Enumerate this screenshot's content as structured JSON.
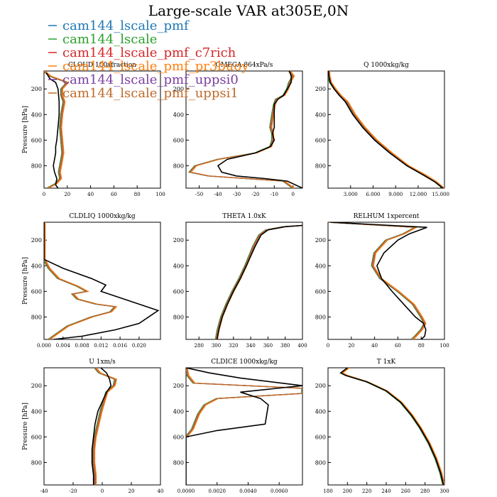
{
  "figure": {
    "title": "Large-scale VAR at305E,0N",
    "legend": [
      {
        "name": "cam144_lscale_pmf",
        "color": "#1f77b4"
      },
      {
        "name": "cam144_lscale",
        "color": "#2ca02c"
      },
      {
        "name": "cam144_lscale_pmf_c7rich",
        "color": "#d62728"
      },
      {
        "name": "cam144_lscale_pmf_pr3buoy",
        "color": "#ff7f0e"
      },
      {
        "name": "cam144_lscale_pmf_uppsi0",
        "color": "#7b3fa0"
      },
      {
        "name": "cam144_lscale_pmf_uppsi1",
        "color": "#c06a2b"
      }
    ],
    "obs_color": "#000000"
  },
  "chart_data": [
    {
      "type": "line",
      "title": "CLOUD 100xfraction",
      "ylabel": "Pressure [hPa]",
      "ylim": [
        975,
        60
      ],
      "yticks": [
        200,
        400,
        600,
        800
      ],
      "xlim": [
        0,
        100
      ],
      "xticks": [
        "0",
        "20",
        "40",
        "60",
        "80",
        "100"
      ],
      "xtick_values": [
        0,
        20,
        40,
        60,
        80,
        100
      ],
      "obs": {
        "x": [
          2,
          5,
          10,
          12,
          13,
          13,
          12,
          11,
          10,
          10,
          9,
          8,
          9,
          11,
          10,
          12
        ],
        "y": [
          75,
          120,
          150,
          200,
          300,
          400,
          500,
          600,
          650,
          700,
          750,
          800,
          850,
          900,
          950,
          975
        ]
      },
      "model": {
        "x": [
          0,
          5,
          20,
          15,
          15,
          17,
          15,
          14,
          15,
          16,
          15,
          14,
          13,
          14,
          10,
          3
        ],
        "y": [
          60,
          100,
          150,
          200,
          250,
          300,
          400,
          500,
          600,
          700,
          750,
          800,
          850,
          900,
          940,
          975
        ]
      }
    },
    {
      "type": "line",
      "title": "OMEGA 864xPa/s",
      "ylabel": "",
      "ylim": [
        975,
        60
      ],
      "yticks": [
        200,
        400,
        600,
        800
      ],
      "xlim": [
        -57,
        5
      ],
      "xticks": [
        "-50",
        "-40",
        "-30",
        "-20",
        "-10",
        "0"
      ],
      "xtick_values": [
        -50,
        -40,
        -30,
        -20,
        -10,
        0
      ],
      "obs": {
        "x": [
          -2,
          -1,
          -1,
          -3,
          -5,
          -8,
          -10,
          -10,
          -10,
          -11,
          -10,
          -12,
          -20,
          -35,
          -40,
          -38,
          -30,
          -15,
          -3,
          5
        ],
        "y": [
          60,
          100,
          150,
          200,
          250,
          280,
          320,
          400,
          500,
          550,
          600,
          650,
          700,
          750,
          800,
          850,
          880,
          900,
          920,
          975
        ]
      },
      "model": {
        "x": [
          -2,
          0,
          -2,
          -3,
          -5,
          -9,
          -10,
          -11,
          -12,
          -11,
          -11,
          -12,
          -20,
          -40,
          -52,
          -55,
          -45,
          -25,
          -5,
          0
        ],
        "y": [
          60,
          100,
          150,
          200,
          250,
          280,
          320,
          400,
          500,
          550,
          600,
          650,
          700,
          750,
          800,
          850,
          880,
          900,
          920,
          975
        ]
      }
    },
    {
      "type": "line",
      "title": "Q 1000xkg/kg",
      "ylabel": "",
      "ylim": [
        975,
        60
      ],
      "yticks": [
        200,
        400,
        600,
        800
      ],
      "xlim": [
        0,
        15.5
      ],
      "xticks": [
        "3.000",
        "6.000",
        "9.000",
        "12.000",
        "15.000"
      ],
      "xtick_values": [
        3,
        6,
        9,
        12,
        15
      ],
      "obs": {
        "x": [
          0.05,
          0.1,
          0.3,
          0.8,
          1.5,
          2.3,
          3.3,
          4.6,
          6.2,
          8.2,
          10.5,
          12.6,
          14.2,
          15.3
        ],
        "y": [
          60,
          100,
          150,
          200,
          250,
          300,
          400,
          500,
          600,
          700,
          800,
          870,
          925,
          975
        ]
      },
      "model": {
        "x": [
          0.05,
          0.1,
          0.3,
          0.9,
          1.6,
          2.5,
          3.5,
          4.8,
          6.4,
          8.4,
          10.6,
          12.8,
          14.3,
          15.3
        ],
        "y": [
          60,
          100,
          150,
          200,
          250,
          300,
          400,
          500,
          600,
          700,
          800,
          870,
          925,
          975
        ]
      }
    },
    {
      "type": "line",
      "title": "CLDLIQ 1000xkg/kg",
      "ylabel": "Pressure [hPa]",
      "ylim": [
        975,
        60
      ],
      "yticks": [
        200,
        400,
        600,
        800
      ],
      "xlim": [
        0,
        0.0245
      ],
      "xticks": [
        "0.000",
        "0.004",
        "0.008",
        "0.012",
        "0.016",
        "0.020"
      ],
      "xtick_values": [
        0,
        0.004,
        0.008,
        0.012,
        0.016,
        0.02
      ],
      "obs": {
        "x": [
          0,
          0,
          0.004,
          0.01,
          0.013,
          0.012,
          0.016,
          0.02,
          0.024,
          0.022,
          0.02,
          0.015,
          0.008,
          0.002
        ],
        "y": [
          60,
          350,
          420,
          500,
          550,
          600,
          650,
          700,
          750,
          800,
          850,
          900,
          950,
          975
        ]
      },
      "upper": {
        "x": [
          0,
          0,
          0.001,
          0.003,
          0.007,
          0.009,
          0.006,
          0.007,
          0.011,
          0.015,
          0.014,
          0.01,
          0.005,
          0.001
        ],
        "y": [
          60,
          350,
          420,
          500,
          560,
          600,
          620,
          660,
          700,
          720,
          760,
          800,
          870,
          975
        ]
      }
    },
    {
      "type": "line",
      "title": "THETA 1.0xK",
      "ylabel": "",
      "ylim": [
        975,
        60
      ],
      "yticks": [
        200,
        400,
        600,
        800
      ],
      "xlim": [
        265,
        400
      ],
      "xticks": [
        "280",
        "300",
        "320",
        "340",
        "360",
        "380",
        "400"
      ],
      "xtick_values": [
        280,
        300,
        320,
        340,
        360,
        380,
        400
      ],
      "obs": {
        "x": [
          400,
          380,
          360,
          352,
          345,
          335,
          328,
          320,
          313,
          307,
          303,
          301
        ],
        "y": [
          85,
          95,
          120,
          160,
          250,
          400,
          500,
          600,
          700,
          800,
          900,
          975
        ]
      },
      "model": {
        "x": [
          400,
          378,
          358,
          350,
          343,
          334,
          327,
          319,
          312,
          306,
          302,
          300
        ],
        "y": [
          85,
          95,
          120,
          160,
          250,
          400,
          500,
          600,
          700,
          800,
          900,
          975
        ]
      }
    },
    {
      "type": "line",
      "title": "RELHUM 1xpercent",
      "ylabel": "",
      "ylim": [
        975,
        60
      ],
      "yticks": [
        200,
        400,
        600,
        800
      ],
      "xlim": [
        0,
        100
      ],
      "xticks": [
        "0",
        "20",
        "40",
        "60",
        "80",
        "100"
      ],
      "xtick_values": [
        0,
        20,
        40,
        60,
        80,
        100
      ],
      "obs": {
        "x": [
          2,
          85,
          70,
          60,
          48,
          42,
          46,
          55,
          65,
          75,
          82,
          84,
          83,
          80
        ],
        "y": [
          60,
          100,
          150,
          200,
          300,
          400,
          500,
          600,
          700,
          800,
          850,
          900,
          950,
          975
        ]
      },
      "model": {
        "x": [
          0,
          75,
          65,
          50,
          40,
          38,
          45,
          60,
          73,
          80,
          83,
          80,
          75,
          72
        ],
        "y": [
          60,
          100,
          150,
          200,
          300,
          400,
          500,
          600,
          700,
          800,
          850,
          900,
          950,
          975
        ]
      }
    },
    {
      "type": "line",
      "title": "U 1xm/s",
      "ylabel": "Pressure [hPa]",
      "ylim": [
        975,
        60
      ],
      "yticks": [
        200,
        400,
        600,
        800
      ],
      "xlim": [
        -40,
        40
      ],
      "xticks": [
        "-40",
        "-20",
        "0",
        "20",
        "40"
      ],
      "xtick_values": [
        -40,
        -20,
        0,
        20,
        40
      ],
      "obs": {
        "x": [
          -1,
          3,
          5,
          6,
          3,
          -3,
          -5,
          -6,
          -7,
          -7,
          -6,
          -6
        ],
        "y": [
          60,
          100,
          150,
          200,
          250,
          400,
          500,
          600,
          700,
          800,
          900,
          975
        ]
      },
      "model": {
        "x": [
          -5,
          -2,
          9,
          8,
          3,
          -1,
          -3,
          -5,
          -6,
          -6,
          -5,
          -5
        ],
        "y": [
          60,
          100,
          150,
          200,
          250,
          400,
          500,
          600,
          700,
          800,
          900,
          975
        ]
      }
    },
    {
      "type": "line",
      "title": "CLDICE 1000xkg/kg",
      "ylabel": "",
      "ylim": [
        975,
        60
      ],
      "yticks": [
        200,
        400,
        600,
        800
      ],
      "xlim": [
        0,
        0.0075
      ],
      "xticks": [
        "0.0000",
        "0.0020",
        "0.0040",
        "0.0060"
      ],
      "xtick_values": [
        0,
        0.002,
        0.004,
        0.006
      ],
      "obs": {
        "x": [
          0,
          0.0015,
          0.0035,
          0.0075,
          0.0035,
          0.0048,
          0.0053,
          0.0051,
          0.002,
          0,
          0
        ],
        "y": [
          60,
          100,
          140,
          200,
          250,
          300,
          350,
          500,
          550,
          600,
          975
        ]
      },
      "model": {
        "x": [
          0,
          0.0001,
          0.0005,
          0.0075,
          0.0075,
          0.002,
          0.0012,
          0.0008,
          0.0006,
          0.0004,
          0
        ],
        "y": [
          60,
          120,
          180,
          220,
          260,
          300,
          350,
          420,
          480,
          540,
          600
        ]
      }
    },
    {
      "type": "line",
      "title": "T 1xK",
      "ylabel": "",
      "ylim": [
        975,
        60
      ],
      "yticks": [
        200,
        400,
        600,
        800
      ],
      "xlim": [
        180,
        300
      ],
      "xticks": [
        "180",
        "200",
        "220",
        "240",
        "260",
        "280",
        "300"
      ],
      "xtick_values": [
        180,
        200,
        220,
        240,
        260,
        280,
        300
      ],
      "obs": {
        "x": [
          200,
          193,
          198,
          220,
          240,
          255,
          266,
          275,
          284,
          291,
          296,
          299
        ],
        "y": [
          60,
          100,
          120,
          170,
          240,
          330,
          430,
          530,
          650,
          770,
          880,
          975
        ]
      },
      "model": {
        "x": [
          201,
          194,
          199,
          220,
          240,
          255,
          266,
          275,
          284,
          291,
          296,
          299
        ],
        "y": [
          60,
          100,
          120,
          170,
          240,
          330,
          430,
          530,
          650,
          770,
          880,
          975
        ]
      }
    }
  ]
}
